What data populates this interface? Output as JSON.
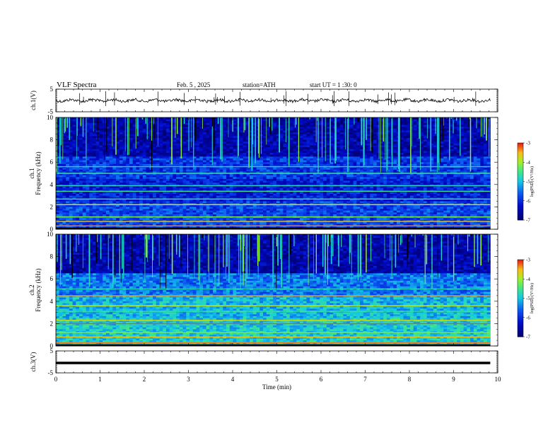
{
  "header": {
    "title": "VLF Spectra",
    "date": "Feb. 5 , 2025",
    "station": "station=ATH",
    "start_ut": "start UT = 1 :30: 0"
  },
  "colors": {
    "trace": "#000000",
    "spectro_low": "#0a1a9a",
    "spectro_mid": "#1ec8e6",
    "spectro_high": "#e41414"
  },
  "chart_data": [
    {
      "type": "line",
      "name": "ch1-waveform",
      "ylabel": "ch.1(V)",
      "ylim": [
        -5,
        5
      ],
      "y_ticks": [
        "5",
        "-5"
      ],
      "trace_value": 0,
      "xlim": [
        0,
        10
      ]
    },
    {
      "type": "heatmap",
      "name": "ch1-spectrogram",
      "ylabel_channel": "ch.1",
      "ylabel": "Frequency (kHz)",
      "ylim": [
        0,
        10
      ],
      "y_ticks": [
        "0",
        "2",
        "4",
        "6",
        "8",
        "10"
      ],
      "colorbar": {
        "label": "log(PSD) (V²/Hz)",
        "range": [
          -7,
          -3
        ],
        "ticks": [
          "-3",
          "-4",
          "-5",
          "-6",
          "-7"
        ]
      }
    },
    {
      "type": "heatmap",
      "name": "ch2-spectrogram",
      "ylabel_channel": "ch.2",
      "ylabel": "Frequency (kHz)",
      "ylim": [
        0,
        10
      ],
      "y_ticks": [
        "0",
        "2",
        "4",
        "6",
        "8",
        "10"
      ],
      "colorbar": {
        "label": "log(PSD) (V²/Hz)",
        "range": [
          -7,
          -3
        ],
        "ticks": [
          "-3",
          "-4",
          "-5",
          "-6",
          "-7"
        ]
      }
    },
    {
      "type": "line",
      "name": "ch3-waveform",
      "ylabel": "ch.3(V)",
      "ylim": [
        -5,
        5
      ],
      "y_ticks": [
        "5",
        "-5"
      ],
      "trace_value": -0.5,
      "xlabel": "Time (min)",
      "xlim": [
        0,
        10
      ],
      "x_ticks": [
        "0",
        "1",
        "2",
        "3",
        "4",
        "5",
        "6",
        "7",
        "8",
        "9",
        "10"
      ]
    }
  ]
}
